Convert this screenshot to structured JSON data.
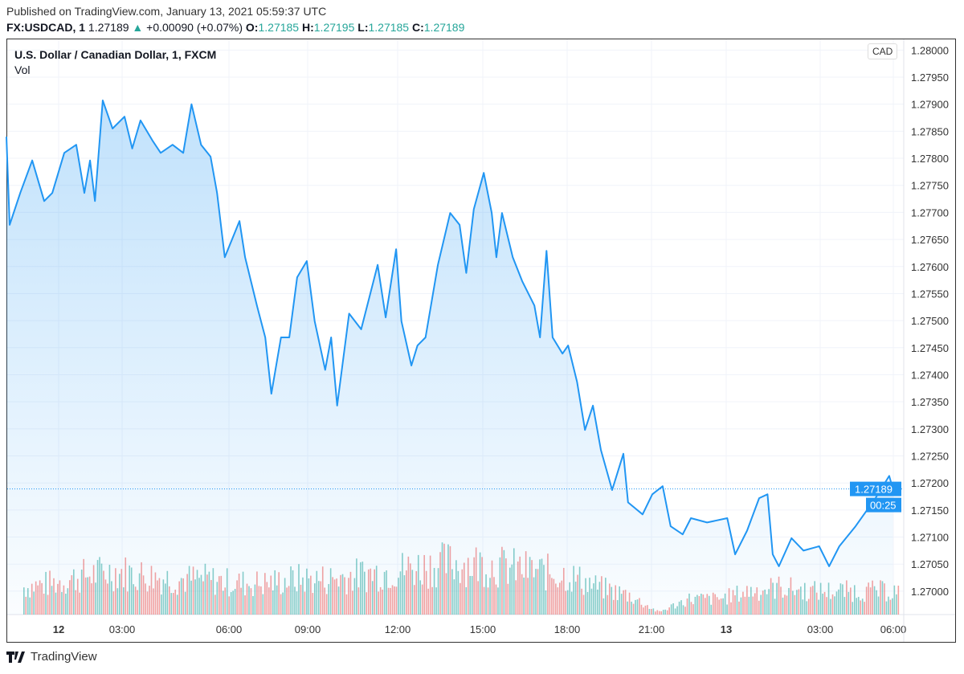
{
  "header": {
    "published": "Published on TradingView.com, January 13, 2021 05:59:37 UTC",
    "symbol": "FX:USDCAD, 1",
    "last": "1.27189",
    "change": "+0.00090 (+0.07%)",
    "o_label": "O:",
    "o": "1.27185",
    "h_label": "H:",
    "h": "1.27195",
    "l_label": "L:",
    "l": "1.27185",
    "c_label": "C:",
    "c": "1.27189"
  },
  "chart_title": "U.S. Dollar / Canadian Dollar, 1, FXCM",
  "vol_label": "Vol",
  "currency": "CAD",
  "footer": {
    "logo": "TradingView"
  },
  "colors": {
    "line": "#2196f3",
    "up": "#26a69a",
    "down": "#ef5350",
    "grid": "#f0f3fa"
  },
  "chart_data": {
    "type": "area",
    "ylim": [
      1.2696,
      1.2801
    ],
    "y_ticks": [
      "1.28000",
      "1.27950",
      "1.27900",
      "1.27850",
      "1.27800",
      "1.27750",
      "1.27700",
      "1.27650",
      "1.27600",
      "1.27550",
      "1.27500",
      "1.27450",
      "1.27400",
      "1.27350",
      "1.27300",
      "1.27250",
      "1.27200",
      "1.27150",
      "1.27100",
      "1.27050",
      "1.27000"
    ],
    "x_ticks": [
      "12",
      "03:00",
      "06:00",
      "09:00",
      "12:00",
      "15:00",
      "18:00",
      "21:00",
      "13",
      "03:00",
      "06:00"
    ],
    "last_price": "1.27189",
    "countdown": "00:25",
    "series": [
      [
        "2021-01-11 21:32",
        1.2784
      ],
      [
        "2021-01-11 21:41",
        1.27677
      ],
      [
        "2021-01-11 22:11",
        1.27736
      ],
      [
        "2021-01-11 22:45",
        1.27796
      ],
      [
        "2021-01-11 23:19",
        1.27721
      ],
      [
        "2021-01-11 23:42",
        1.27736
      ],
      [
        "2021-01-12 00:16",
        1.2781
      ],
      [
        "2021-01-12 00:50",
        1.27825
      ],
      [
        "2021-01-12 01:13",
        1.27736
      ],
      [
        "2021-01-12 01:29",
        1.27796
      ],
      [
        "2021-01-12 01:43",
        1.27721
      ],
      [
        "2021-01-12 02:05",
        1.27907
      ],
      [
        "2021-01-12 02:33",
        1.27855
      ],
      [
        "2021-01-12 03:04",
        1.27877
      ],
      [
        "2021-01-12 03:17",
        1.27818
      ],
      [
        "2021-01-12 03:31",
        1.2787
      ],
      [
        "2021-01-12 03:51",
        1.27833
      ],
      [
        "2021-01-12 04:05",
        1.2781
      ],
      [
        "2021-01-12 04:25",
        1.27825
      ],
      [
        "2021-01-12 04:43",
        1.2781
      ],
      [
        "2021-01-12 04:57",
        1.279
      ],
      [
        "2021-01-12 05:13",
        1.27825
      ],
      [
        "2021-01-12 05:29",
        1.27803
      ],
      [
        "2021-01-12 05:40",
        1.27736
      ],
      [
        "2021-01-12 05:53",
        1.27617
      ],
      [
        "2021-01-12 06:24",
        1.27684
      ],
      [
        "2021-01-12 06:37",
        1.27617
      ],
      [
        "2021-01-12 07:04",
        1.27528
      ],
      [
        "2021-01-12 07:23",
        1.27469
      ],
      [
        "2021-01-12 07:37",
        1.27365
      ],
      [
        "2021-01-12 07:59",
        1.27469
      ],
      [
        "2021-01-12 08:18",
        1.27469
      ],
      [
        "2021-01-12 08:36",
        1.2758
      ],
      [
        "2021-01-12 08:58",
        1.2761
      ],
      [
        "2021-01-12 09:14",
        1.27499
      ],
      [
        "2021-01-12 09:35",
        1.27409
      ],
      [
        "2021-01-12 09:47",
        1.27469
      ],
      [
        "2021-01-12 09:59",
        1.27343
      ],
      [
        "2021-01-12 10:23",
        1.27513
      ],
      [
        "2021-01-12 10:47",
        1.27484
      ],
      [
        "2021-01-12 11:20",
        1.27603
      ],
      [
        "2021-01-12 11:36",
        1.27506
      ],
      [
        "2021-01-12 11:57",
        1.27632
      ],
      [
        "2021-01-12 12:08",
        1.27499
      ],
      [
        "2021-01-12 12:29",
        1.27417
      ],
      [
        "2021-01-12 12:42",
        1.27454
      ],
      [
        "2021-01-12 12:59",
        1.27469
      ],
      [
        "2021-01-12 13:25",
        1.27603
      ],
      [
        "2021-01-12 13:51",
        1.27699
      ],
      [
        "2021-01-12 14:11",
        1.27677
      ],
      [
        "2021-01-12 14:25",
        1.27588
      ],
      [
        "2021-01-12 14:41",
        1.27706
      ],
      [
        "2021-01-12 15:02",
        1.27773
      ],
      [
        "2021-01-12 15:19",
        1.27699
      ],
      [
        "2021-01-12 15:29",
        1.27617
      ],
      [
        "2021-01-12 15:41",
        1.27699
      ],
      [
        "2021-01-12 16:04",
        1.27617
      ],
      [
        "2021-01-12 16:24",
        1.27573
      ],
      [
        "2021-01-12 16:50",
        1.27528
      ],
      [
        "2021-01-12 17:02",
        1.27469
      ],
      [
        "2021-01-12 17:16",
        1.27629
      ],
      [
        "2021-01-12 17:29",
        1.27469
      ],
      [
        "2021-01-12 17:50",
        1.27439
      ],
      [
        "2021-01-12 18:02",
        1.27454
      ],
      [
        "2021-01-12 18:21",
        1.27387
      ],
      [
        "2021-01-12 18:38",
        1.27298
      ],
      [
        "2021-01-12 18:55",
        1.27343
      ],
      [
        "2021-01-12 19:12",
        1.27261
      ],
      [
        "2021-01-12 19:36",
        1.27187
      ],
      [
        "2021-01-12 20:00",
        1.27254
      ],
      [
        "2021-01-12 20:10",
        1.27164
      ],
      [
        "2021-01-12 20:41",
        1.27142
      ],
      [
        "2021-01-12 21:02",
        1.27179
      ],
      [
        "2021-01-12 21:27",
        1.27194
      ],
      [
        "2021-01-12 21:46",
        1.2712
      ],
      [
        "2021-01-12 22:15",
        1.27105
      ],
      [
        "2021-01-12 22:35",
        1.27135
      ],
      [
        "2021-01-12 23:14",
        1.27127
      ],
      [
        "2021-01-13 00:02",
        1.27135
      ],
      [
        "2021-01-13 00:17",
        1.27068
      ],
      [
        "2021-01-13 00:40",
        1.27112
      ],
      [
        "2021-01-13 01:03",
        1.27172
      ],
      [
        "2021-01-13 01:19",
        1.27179
      ],
      [
        "2021-01-13 01:29",
        1.27068
      ],
      [
        "2021-01-13 01:41",
        1.27046
      ],
      [
        "2021-01-13 02:05",
        1.27098
      ],
      [
        "2021-01-13 02:28",
        1.27075
      ],
      [
        "2021-01-13 02:58",
        1.27083
      ],
      [
        "2021-01-13 03:22",
        1.27046
      ],
      [
        "2021-01-13 03:47",
        1.27083
      ],
      [
        "2021-01-13 04:27",
        1.2712
      ],
      [
        "2021-01-13 05:16",
        1.27172
      ],
      [
        "2021-01-13 05:50",
        1.27213
      ],
      [
        "2021-01-13 05:59",
        1.27189
      ]
    ],
    "volume_relative": [
      0.35,
      0.4,
      0.5,
      0.55,
      0.5,
      0.45,
      0.45,
      0.4,
      0.4,
      0.45,
      0.45,
      0.5,
      0.55,
      0.6,
      0.65,
      0.65,
      0.6,
      0.55,
      0.5,
      0.35,
      0.25,
      0.03,
      0.2,
      0.2,
      0.3,
      0.35,
      0.3,
      0.3,
      0.3,
      0.3
    ]
  }
}
